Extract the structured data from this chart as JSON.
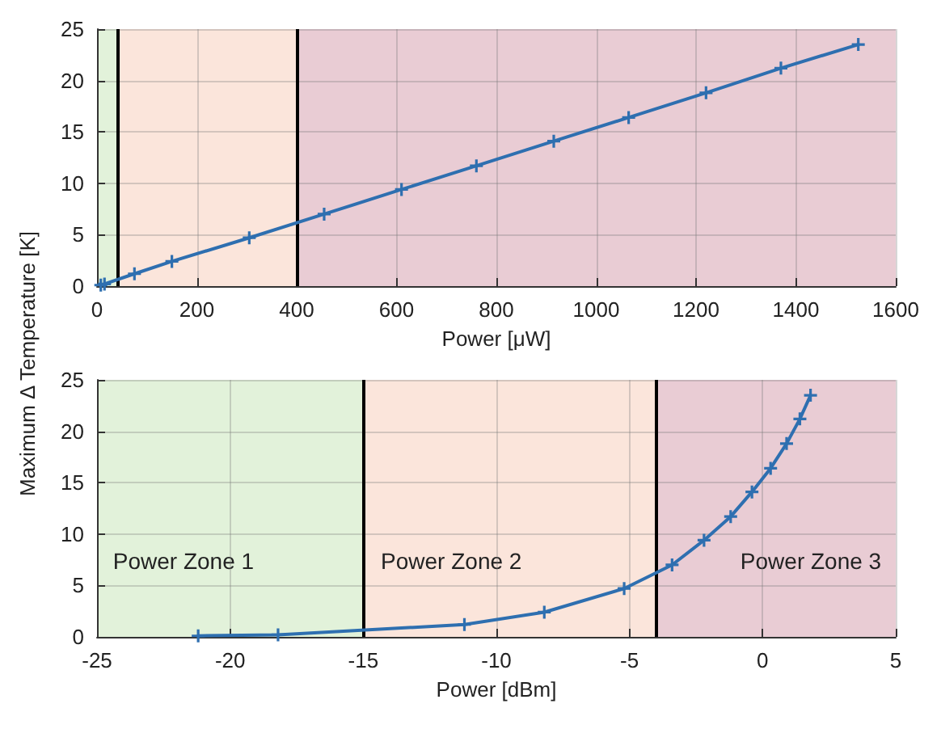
{
  "chart_data": [
    {
      "type": "line",
      "xlabel": "Power [μW]",
      "ylabel": "Maximum Δ Temperature [K]",
      "x": [
        7.6,
        15,
        75,
        150,
        305,
        455,
        610,
        760,
        915,
        1065,
        1220,
        1370,
        1525
      ],
      "series": [
        {
          "color": "#2e6fb0",
          "values": [
            0.1,
            0.2,
            1.2,
            2.4,
            4.7,
            7.0,
            9.4,
            11.7,
            14.1,
            16.4,
            18.8,
            21.2,
            23.5
          ]
        }
      ],
      "xlim": [
        0,
        1600
      ],
      "xticks": [
        0,
        200,
        400,
        600,
        800,
        1000,
        1200,
        1400,
        1600
      ],
      "ylim": [
        0,
        25
      ],
      "yticks": [
        0,
        5,
        10,
        15,
        20,
        25
      ],
      "grid": true,
      "marker": "cross",
      "line_style": "solid",
      "bands": [
        {
          "axis": "x",
          "from": 0,
          "to": 40,
          "color": "#e2f2da"
        },
        {
          "axis": "x",
          "from": 40,
          "to": 400,
          "color": "#fbe5db"
        },
        {
          "axis": "x",
          "from": 400,
          "to": 1600,
          "color": "#e9ccd4"
        }
      ],
      "ref_lines": [
        {
          "axis": "x",
          "value": 40,
          "color": "#000000"
        },
        {
          "axis": "x",
          "value": 400,
          "color": "#000000"
        }
      ]
    },
    {
      "type": "line",
      "xlabel": "Power [dBm]",
      "x": [
        -21.2,
        -18.2,
        -11.2,
        -8.2,
        -5.2,
        -3.4,
        -2.2,
        -1.2,
        -0.4,
        0.3,
        0.9,
        1.4,
        1.8
      ],
      "series": [
        {
          "color": "#2e6fb0",
          "values": [
            0.1,
            0.2,
            1.2,
            2.4,
            4.7,
            7.0,
            9.4,
            11.7,
            14.1,
            16.4,
            18.8,
            21.2,
            23.5
          ]
        }
      ],
      "xlim": [
        -25,
        5
      ],
      "xticks": [
        -25,
        -20,
        -15,
        -10,
        -5,
        0,
        5
      ],
      "ylim": [
        0,
        25
      ],
      "yticks": [
        0,
        5,
        10,
        15,
        20,
        25
      ],
      "grid": true,
      "marker": "cross",
      "line_style": "solid",
      "bands": [
        {
          "axis": "x",
          "from": -25,
          "to": -15,
          "color": "#e2f2da",
          "label": "Power Zone 1"
        },
        {
          "axis": "x",
          "from": -15,
          "to": -4,
          "color": "#fbe5db",
          "label": "Power Zone 2"
        },
        {
          "axis": "x",
          "from": -4,
          "to": 5,
          "color": "#e9ccd4",
          "label": "Power Zone 3"
        }
      ],
      "ref_lines": [
        {
          "axis": "x",
          "value": -15,
          "color": "#000000"
        },
        {
          "axis": "x",
          "value": -4,
          "color": "#000000"
        }
      ]
    }
  ]
}
